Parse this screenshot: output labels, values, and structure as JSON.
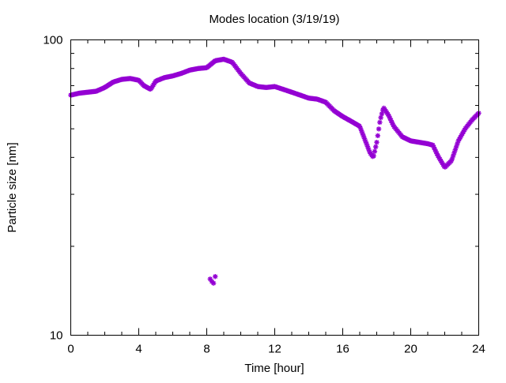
{
  "chart_data": {
    "type": "scatter",
    "title": "Modes location (3/19/19)",
    "xlabel": "Time [hour]",
    "ylabel": "Particle size [nm]",
    "xlim": [
      0,
      24
    ],
    "ylim": [
      10,
      100
    ],
    "yscale": "log",
    "grid": false,
    "legend": "none",
    "x_ticks": [
      0,
      4,
      8,
      12,
      16,
      20,
      24
    ],
    "x_tick_labels": [
      "0",
      "4",
      "8",
      "12",
      "16",
      "20",
      "24"
    ],
    "y_ticks": [
      10,
      100
    ],
    "y_tick_labels": [
      "10",
      "100"
    ],
    "marker": "asterisk",
    "color": "#9400d3",
    "series": [
      {
        "x": [
          0.0,
          0.5,
          1.0,
          1.5,
          2.0,
          2.5,
          3.0,
          3.5,
          4.0,
          4.3,
          4.7,
          5.0,
          5.5,
          6.0,
          6.5,
          7.0,
          7.5,
          8.0,
          8.5,
          9.0,
          9.5,
          10.0,
          10.5,
          11.0,
          11.5,
          12.0,
          12.5,
          13.0,
          13.5,
          14.0,
          14.5,
          15.0,
          15.5,
          16.0,
          16.5,
          17.0,
          17.3,
          17.6,
          17.8,
          18.0,
          18.2,
          18.4,
          18.7,
          19.0,
          19.5,
          20.0,
          20.5,
          21.0,
          21.3,
          21.6,
          22.0,
          22.4,
          22.8,
          23.2,
          23.6,
          24.0
        ],
        "y": [
          65,
          66,
          66.5,
          67,
          69,
          72,
          73.5,
          74,
          73,
          70,
          68,
          72.5,
          74.5,
          75.5,
          77,
          79,
          80,
          80.5,
          85,
          86,
          84,
          77,
          71.5,
          69.5,
          69,
          69.5,
          68,
          66.5,
          65,
          63.5,
          63,
          61.5,
          57.5,
          55,
          53,
          51,
          46,
          41.5,
          40,
          45,
          53.5,
          59,
          55.5,
          51,
          47,
          45.5,
          45,
          44.5,
          44,
          40.5,
          37,
          39,
          45.5,
          50,
          53.5,
          56.5
        ]
      },
      {
        "x": [
          8.2,
          8.3,
          8.4,
          8.5
        ],
        "y": [
          15.5,
          15.2,
          15.0,
          15.8
        ]
      }
    ]
  }
}
